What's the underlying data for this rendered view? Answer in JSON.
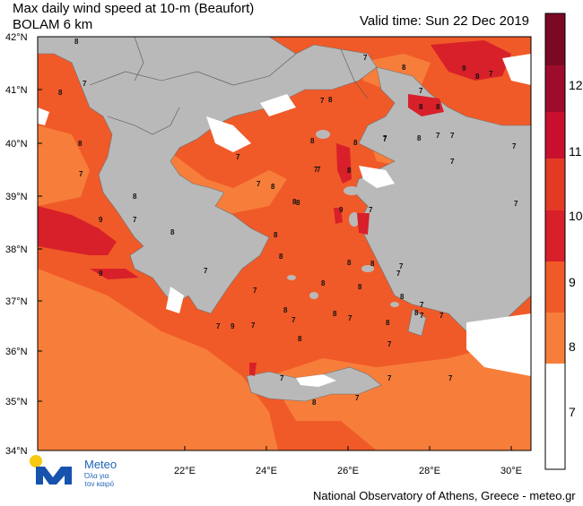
{
  "header": {
    "title_line1": "Max daily wind speed at 10-m (Beaufort)",
    "title_line2": "BOLAM 6 km",
    "valid_time": "Valid time: Sun 22 Dec 2019"
  },
  "map": {
    "lat_labels": [
      "42°N",
      "41°N",
      "40°N",
      "39°N",
      "38°N",
      "37°N",
      "36°N",
      "35°N",
      "34°N"
    ],
    "lon_labels": [
      "22°E",
      "24°E",
      "26°E",
      "28°E",
      "30°E"
    ],
    "colors": {
      "sea_7_8": "#f77e3a",
      "sea_8_9": "#f05a28",
      "sea_9_10": "#d8202a",
      "land": "#b9b9b9",
      "white": "#ffffff",
      "border": "#6e6e6e"
    }
  },
  "colorbar": {
    "labels": [
      "7",
      "8",
      "9",
      "10",
      "11",
      "12"
    ],
    "colors": [
      "#ffffff",
      "#f77e3a",
      "#f05a28",
      "#e33a26",
      "#c8102e",
      "#9e0c2c",
      "#7a0a24"
    ]
  },
  "wind_labels": [
    "8",
    "8",
    "7",
    "8",
    "7",
    "9",
    "9",
    "8",
    "7",
    "8",
    "7",
    "7",
    "7",
    "9",
    "7",
    "8",
    "7",
    "8",
    "8",
    "8",
    "8",
    "7",
    "8",
    "7",
    "8",
    "8",
    "7",
    "8",
    "7",
    "8",
    "8",
    "9",
    "9",
    "7",
    "8",
    "7",
    "8",
    "8",
    "8",
    "7",
    "7",
    "8",
    "8",
    "8",
    "8",
    "8",
    "8",
    "7",
    "7",
    "7",
    "7",
    "8",
    "7",
    "7",
    "7",
    "7",
    "8",
    "7",
    "7",
    "7",
    "8",
    "7",
    "7",
    "7",
    "7",
    "7",
    "7",
    "7",
    "7",
    "8"
  ],
  "logo": {
    "brand": "Meteo",
    "tagline": "Όλα για τον καιρό"
  },
  "footer": {
    "credit": "National Observatory of Athens, Greece - meteo.gr"
  }
}
